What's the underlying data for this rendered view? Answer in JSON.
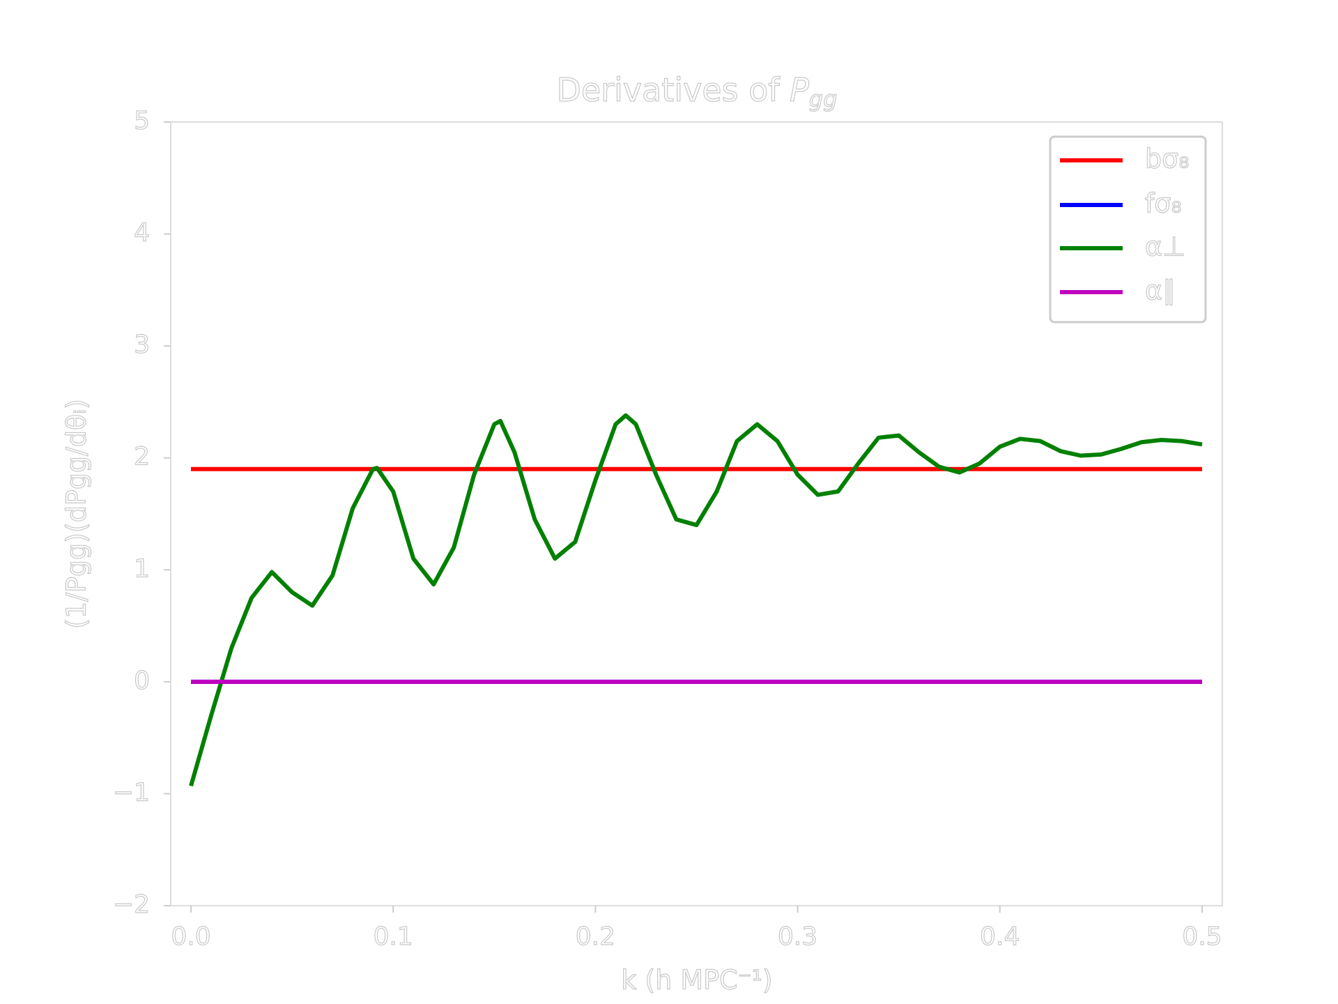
{
  "chart_data": {
    "type": "line",
    "title": "Derivatives of",
    "title_symbol": "P",
    "title_subscript": "gg",
    "xlabel": "k (h MPC⁻¹)",
    "ylabel": "(1/Pgg)(dPgg/dθᵢ)",
    "xlim": [
      -0.01,
      0.51
    ],
    "ylim": [
      -2,
      5
    ],
    "xticks": [
      {
        "value": 0,
        "label": "0.0"
      },
      0.1,
      0.2,
      0.3,
      0.4,
      {
        "value": 0.5,
        "label": "0.5"
      }
    ],
    "yticks": [
      {
        "value": -2,
        "label": "−2"
      },
      {
        "value": -1,
        "label": "−1"
      },
      0,
      1,
      2,
      3,
      4,
      5
    ],
    "grid": false,
    "legend": "upper right",
    "series": [
      {
        "name": "bσ₈",
        "color": "#ff0000",
        "x": [
          0,
          0.5
        ],
        "values": [
          1.9,
          1.9
        ]
      },
      {
        "name": "fσ₈",
        "color": "#0000ff",
        "x": [
          0,
          0.5
        ],
        "values": [
          0,
          0
        ]
      },
      {
        "name": "α⊥",
        "color": "#008000",
        "x": [
          0,
          0.01,
          0.015,
          0.02,
          0.03,
          0.04,
          0.05,
          0.06,
          0.07,
          0.08,
          0.09,
          0.092,
          0.1,
          0.11,
          0.12,
          0.13,
          0.14,
          0.15,
          0.153,
          0.16,
          0.17,
          0.18,
          0.19,
          0.2,
          0.21,
          0.215,
          0.22,
          0.23,
          0.24,
          0.25,
          0.26,
          0.27,
          0.28,
          0.29,
          0.3,
          0.31,
          0.32,
          0.33,
          0.34,
          0.35,
          0.36,
          0.37,
          0.38,
          0.39,
          0.4,
          0.41,
          0.42,
          0.43,
          0.44,
          0.45,
          0.46,
          0.47,
          0.48,
          0.49,
          0.5
        ],
        "values": [
          -0.93,
          -0.3,
          0,
          0.3,
          0.75,
          0.98,
          0.8,
          0.68,
          0.95,
          1.55,
          1.9,
          1.91,
          1.7,
          1.1,
          0.87,
          1.2,
          1.85,
          2.3,
          2.33,
          2.05,
          1.45,
          1.1,
          1.25,
          1.8,
          2.3,
          2.38,
          2.3,
          1.85,
          1.45,
          1.4,
          1.7,
          2.15,
          2.3,
          2.15,
          1.85,
          1.67,
          1.7,
          1.95,
          2.18,
          2.2,
          2.05,
          1.92,
          1.87,
          1.95,
          2.1,
          2.17,
          2.15,
          2.06,
          2.02,
          2.03,
          2.08,
          2.14,
          2.16,
          2.15,
          2.12
        ]
      },
      {
        "name": "α∥",
        "color": "#bf00bf",
        "x": [
          0,
          0.5
        ],
        "values": [
          0,
          0
        ]
      }
    ]
  }
}
